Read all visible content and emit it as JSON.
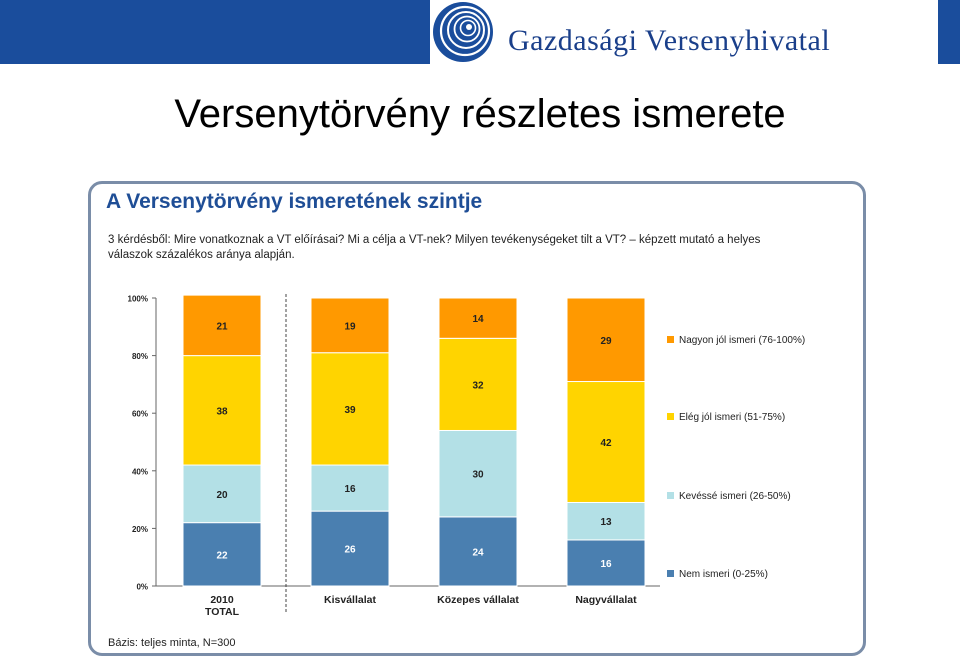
{
  "header": {
    "logo_text": "Gazdasági Versenyhivatal",
    "slide_title": "Versenytörvény részletes ismerete"
  },
  "panel": {
    "title": "A Versenytörvény ismeretének szintje",
    "subtitle": "3 kérdésből: Mire vonatkoznak a VT előírásai? Mi a célja a VT-nek? Milyen tevékenységeket tilt a VT? – képzett mutató a helyes válaszok százalékos aránya alapján.",
    "footnote": "Bázis: teljes minta, N=300"
  },
  "colors": {
    "brand_blue": "#1a4d9c",
    "nem_ismeri": "#4a7fb0",
    "kevesse": "#b3e0e6",
    "eleg_jol": "#ffd400",
    "nagyon_jol": "#ff9900"
  },
  "chart_data": {
    "type": "bar",
    "stacked": true,
    "categories": [
      "2010\nTOTAL",
      "Kisvállalat",
      "Közepes vállalat",
      "Nagyvállalat"
    ],
    "series": [
      {
        "name": "Nem ismeri (0-25%)",
        "values": [
          22,
          26,
          24,
          16
        ],
        "color": "#4a7fb0"
      },
      {
        "name": "Kevéssé ismeri (26-50%)",
        "values": [
          20,
          16,
          30,
          13
        ],
        "color": "#b3e0e6"
      },
      {
        "name": "Elég jól ismeri (51-75%)",
        "values": [
          38,
          39,
          32,
          42
        ],
        "color": "#ffd400"
      },
      {
        "name": "Nagyon jól ismeri (76-100%)",
        "values": [
          21,
          19,
          14,
          29
        ],
        "color": "#ff9900"
      }
    ],
    "ylim": [
      0,
      100
    ],
    "yticks": [
      "0%",
      "20%",
      "40%",
      "60%",
      "80%",
      "100%"
    ],
    "legend_position": "right",
    "grid": false,
    "divider_after_first": true
  }
}
